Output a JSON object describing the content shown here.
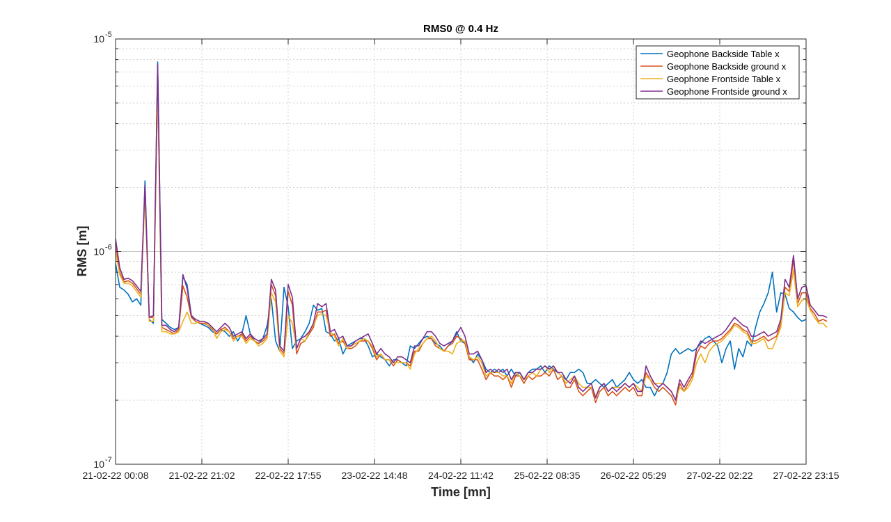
{
  "chart_data": {
    "type": "line",
    "title": "RMS0 @ 0.4 Hz",
    "xlabel": "Time [mn]",
    "ylabel": "RMS [m]",
    "y_scale": "log",
    "ylim": [
      1e-07,
      1e-05
    ],
    "y_ticks": [
      {
        "value": 1e-07,
        "base": "10",
        "exp": "-7"
      },
      {
        "value": 1e-06,
        "base": "10",
        "exp": "-6"
      },
      {
        "value": 1e-05,
        "base": "10",
        "exp": "-5"
      }
    ],
    "x_ticks": [
      "21-02-22 00:08",
      "21-02-22 21:02",
      "22-02-22 17:55",
      "23-02-22 14:48",
      "24-02-22 11:42",
      "25-02-22 08:35",
      "26-02-22 05:29",
      "27-02-22 02:22",
      "27-02-22 23:15"
    ],
    "grid": true,
    "minor_grid": true,
    "legend_position": "top-right",
    "series": [
      {
        "name": "Geophone Backside Table x",
        "color": "#0072BD",
        "values": [
          8.8e-07,
          6.8e-07,
          6.6e-07,
          6.3e-07,
          5.8e-07,
          6e-07,
          5.6e-07,
          2.15e-06,
          4.8e-07,
          4.6e-07,
          7.8e-06,
          4.8e-07,
          4.6e-07,
          4.4e-07,
          4.3e-07,
          4.4e-07,
          7.6e-07,
          7e-07,
          5e-07,
          4.7e-07,
          4.6e-07,
          4.5e-07,
          4.4e-07,
          4.2e-07,
          4.1e-07,
          4.3e-07,
          4.2e-07,
          4e-07,
          4.2e-07,
          3.8e-07,
          4.1e-07,
          5e-07,
          4.1e-07,
          3.8e-07,
          3.7e-07,
          3.9e-07,
          4.5e-07,
          6e-07,
          3.8e-07,
          3.4e-07,
          6.8e-07,
          5.5e-07,
          3.5e-07,
          3.8e-07,
          3.9e-07,
          4.2e-07,
          4.6e-07,
          5.6e-07,
          5.3e-07,
          5.4e-07,
          4.2e-07,
          4.1e-07,
          3.8e-07,
          3.9e-07,
          3.3e-07,
          3.6e-07,
          3.7e-07,
          3.8e-07,
          3.9e-07,
          3.9e-07,
          3.6e-07,
          3.2e-07,
          3.3e-07,
          3.2e-07,
          3.1e-07,
          2.9e-07,
          3.1e-07,
          3.1e-07,
          3e-07,
          2.9e-07,
          3.6e-07,
          3.5e-07,
          3.7e-07,
          3.9e-07,
          4e-07,
          3.9e-07,
          3.7e-07,
          3.6e-07,
          3.4e-07,
          3.6e-07,
          3.8e-07,
          4.2e-07,
          3.8e-07,
          3.7e-07,
          3.2e-07,
          3e-07,
          3.3e-07,
          3.1e-07,
          2.8e-07,
          2.7e-07,
          2.8e-07,
          2.7e-07,
          2.8e-07,
          2.6e-07,
          2.8e-07,
          2.6e-07,
          2.7e-07,
          2.5e-07,
          2.7e-07,
          2.8e-07,
          2.8e-07,
          2.9e-07,
          2.7e-07,
          2.9e-07,
          2.8e-07,
          2.7e-07,
          2.6e-07,
          2.5e-07,
          2.7e-07,
          2.7e-07,
          2.8e-07,
          2.7e-07,
          2.4e-07,
          2.4e-07,
          2.5e-07,
          2.4e-07,
          2.3e-07,
          2.4e-07,
          2.5e-07,
          2.3e-07,
          2.4e-07,
          2.5e-07,
          2.7e-07,
          2.5e-07,
          2.4e-07,
          2.5e-07,
          2.3e-07,
          2.3e-07,
          2.1e-07,
          2.3e-07,
          2.4e-07,
          2.7e-07,
          3.3e-07,
          3.5e-07,
          3.3e-07,
          3.4e-07,
          3.5e-07,
          3.4e-07,
          3.5e-07,
          3.7e-07,
          3.9e-07,
          4e-07,
          3.8e-07,
          3.6e-07,
          3e-07,
          3.5e-07,
          3.8e-07,
          2.8e-07,
          3.5e-07,
          3.2e-07,
          3.8e-07,
          3.6e-07,
          4.4e-07,
          5.2e-07,
          5.7e-07,
          6.4e-07,
          8e-07,
          5.2e-07,
          6.4e-07,
          6.3e-07,
          5.4e-07,
          5.2e-07,
          4.9e-07,
          4.7e-07,
          4.8e-07
        ]
      },
      {
        "name": "Geophone Backside ground x",
        "color": "#D95319",
        "values": [
          1.1e-06,
          8e-07,
          7.2e-07,
          7.3e-07,
          7.1e-07,
          6.7e-07,
          6.3e-07,
          1.9e-06,
          4.9e-07,
          4.9e-07,
          6.4e-06,
          4.4e-07,
          4.3e-07,
          4.2e-07,
          4.1e-07,
          4.3e-07,
          6.9e-07,
          6.1e-07,
          4.9e-07,
          4.7e-07,
          4.6e-07,
          4.6e-07,
          4.5e-07,
          4.3e-07,
          4.1e-07,
          4.3e-07,
          4.4e-07,
          4.2e-07,
          3.9e-07,
          4e-07,
          4.1e-07,
          3.8e-07,
          4e-07,
          3.8e-07,
          3.7e-07,
          3.8e-07,
          4e-07,
          7e-07,
          6.2e-07,
          3.5e-07,
          3.3e-07,
          6.5e-07,
          5.6e-07,
          3.3e-07,
          3.7e-07,
          3.8e-07,
          4.1e-07,
          4.4e-07,
          5.2e-07,
          5.2e-07,
          5.3e-07,
          4e-07,
          4.1e-07,
          3.7e-07,
          3.8e-07,
          3.5e-07,
          3.5e-07,
          3.6e-07,
          3.8e-07,
          3.8e-07,
          3.8e-07,
          3.5e-07,
          3.1e-07,
          3.3e-07,
          3.1e-07,
          3.1e-07,
          2.9e-07,
          3.1e-07,
          3e-07,
          3e-07,
          2.9e-07,
          3.4e-07,
          3.4e-07,
          3.7e-07,
          3.9e-07,
          3.9e-07,
          3.6e-07,
          3.5e-07,
          3.4e-07,
          3.6e-07,
          3.7e-07,
          4e-07,
          3.9e-07,
          3.7e-07,
          3.1e-07,
          3.1e-07,
          3.1e-07,
          2.8e-07,
          2.5e-07,
          2.7e-07,
          2.6e-07,
          2.6e-07,
          2.5e-07,
          2.6e-07,
          2.3e-07,
          2.6e-07,
          2.6e-07,
          2.4e-07,
          2.6e-07,
          2.5e-07,
          2.6e-07,
          2.6e-07,
          2.7e-07,
          2.6e-07,
          2.8e-07,
          2.5e-07,
          2.6e-07,
          2.3e-07,
          2.3e-07,
          2.5e-07,
          2.2e-07,
          2.1e-07,
          2.2e-07,
          2.3e-07,
          1.95e-07,
          2.2e-07,
          2.3e-07,
          2.1e-07,
          2.2e-07,
          2.1e-07,
          2.2e-07,
          2.3e-07,
          2.2e-07,
          2.3e-07,
          2.1e-07,
          2.1e-07,
          2.7e-07,
          2.5e-07,
          2.3e-07,
          2.2e-07,
          2.3e-07,
          2.2e-07,
          2.1e-07,
          1.9e-07,
          2.4e-07,
          2.2e-07,
          2.4e-07,
          2.6e-07,
          3.3e-07,
          3.6e-07,
          3.5e-07,
          3.7e-07,
          3.8e-07,
          3.8e-07,
          3.9e-07,
          4.1e-07,
          4.3e-07,
          4.6e-07,
          4.5e-07,
          4.3e-07,
          4.2e-07,
          3.8e-07,
          3.8e-07,
          3.9e-07,
          4e-07,
          3.8e-07,
          3.9e-07,
          4e-07,
          4.6e-07,
          6.8e-07,
          6.5e-07,
          9.2e-07,
          5.7e-07,
          6.4e-07,
          6.4e-07,
          5.4e-07,
          5.1e-07,
          4.7e-07,
          4.8e-07,
          4.7e-07
        ]
      },
      {
        "name": "Geophone Frontside Table x",
        "color": "#EDB120",
        "values": [
          1e-06,
          7.8e-07,
          7.1e-07,
          7.1e-07,
          6.9e-07,
          6.5e-07,
          6.1e-07,
          1.85e-06,
          4.7e-07,
          4.7e-07,
          6.2e-06,
          4.2e-07,
          4.2e-07,
          4.1e-07,
          4.1e-07,
          4.2e-07,
          4.7e-07,
          5.2e-07,
          4.6e-07,
          4.6e-07,
          4.7e-07,
          4.7e-07,
          4.5e-07,
          4.4e-07,
          3.9e-07,
          4.2e-07,
          4.3e-07,
          4.2e-07,
          3.8e-07,
          4e-07,
          4e-07,
          3.7e-07,
          3.9e-07,
          3.8e-07,
          3.6e-07,
          3.7e-07,
          3.9e-07,
          6.4e-07,
          5.8e-07,
          3.4e-07,
          3.2e-07,
          5e-07,
          4.6e-07,
          3.5e-07,
          3.9e-07,
          3.8e-07,
          4.2e-07,
          4.5e-07,
          5e-07,
          5.1e-07,
          5e-07,
          4.2e-07,
          4e-07,
          3.6e-07,
          3.9e-07,
          3.5e-07,
          3.6e-07,
          3.7e-07,
          3.8e-07,
          3.9e-07,
          3.8e-07,
          3.6e-07,
          3.2e-07,
          3.3e-07,
          3.1e-07,
          3.1e-07,
          3e-07,
          3e-07,
          3e-07,
          3e-07,
          2.8e-07,
          3.3e-07,
          3.5e-07,
          3.7e-07,
          3.9e-07,
          4e-07,
          3.8e-07,
          3.5e-07,
          3.4e-07,
          3.4e-07,
          3.3e-07,
          3.7e-07,
          3.8e-07,
          3.8e-07,
          3.2e-07,
          3.1e-07,
          3.2e-07,
          3e-07,
          2.6e-07,
          2.7e-07,
          2.7e-07,
          2.7e-07,
          2.6e-07,
          2.6e-07,
          2.4e-07,
          2.7e-07,
          2.6e-07,
          2.5e-07,
          2.6e-07,
          2.7e-07,
          2.6e-07,
          2.8e-07,
          2.9e-07,
          2.7e-07,
          2.9e-07,
          2.7e-07,
          2.6e-07,
          2.4e-07,
          2.5e-07,
          2.6e-07,
          2.4e-07,
          2.3e-07,
          2.3e-07,
          2.3e-07,
          2.1e-07,
          2.3e-07,
          2.4e-07,
          2.2e-07,
          2.3e-07,
          2.3e-07,
          2.3e-07,
          2.4e-07,
          2.3e-07,
          2.4e-07,
          2.3e-07,
          2.2e-07,
          2.6e-07,
          2.5e-07,
          2.4e-07,
          2.4e-07,
          2.4e-07,
          2.3e-07,
          2.2e-07,
          2e-07,
          2.3e-07,
          2.2e-07,
          2.3e-07,
          2.5e-07,
          3e-07,
          3.3e-07,
          3e-07,
          3.4e-07,
          3.6e-07,
          3.7e-07,
          3.8e-07,
          4e-07,
          4.2e-07,
          4.5e-07,
          4.4e-07,
          4.2e-07,
          4.1e-07,
          3.7e-07,
          3.7e-07,
          3.8e-07,
          3.9e-07,
          3.5e-07,
          3.5e-07,
          3.9e-07,
          4.4e-07,
          6.4e-07,
          6.2e-07,
          8.2e-07,
          5.5e-07,
          5.9e-07,
          6e-07,
          5.3e-07,
          4.9e-07,
          4.6e-07,
          4.6e-07,
          4.4e-07
        ]
      },
      {
        "name": "Geophone Frontside ground x",
        "color": "#7E2F8E",
        "values": [
          1.15e-06,
          8.4e-07,
          7.4e-07,
          7.5e-07,
          7.3e-07,
          6.9e-07,
          6.5e-07,
          2.05e-06,
          4.9e-07,
          5e-07,
          7.6e-06,
          4.5e-07,
          4.5e-07,
          4.3e-07,
          4.2e-07,
          4.4e-07,
          7.8e-07,
          6.7e-07,
          5e-07,
          4.8e-07,
          4.7e-07,
          4.7e-07,
          4.6e-07,
          4.4e-07,
          4.2e-07,
          4.4e-07,
          4.6e-07,
          4.4e-07,
          4e-07,
          4.1e-07,
          4.2e-07,
          3.9e-07,
          4.1e-07,
          3.9e-07,
          3.8e-07,
          3.9e-07,
          4.1e-07,
          7.4e-07,
          6.6e-07,
          3.6e-07,
          3.4e-07,
          7e-07,
          6.1e-07,
          3.5e-07,
          3.9e-07,
          4e-07,
          4.2e-07,
          4.6e-07,
          5.7e-07,
          5.5e-07,
          5.7e-07,
          4.2e-07,
          4.3e-07,
          3.9e-07,
          4e-07,
          3.6e-07,
          3.6e-07,
          3.8e-07,
          3.9e-07,
          4e-07,
          4.1e-07,
          3.7e-07,
          3.3e-07,
          3.5e-07,
          3.3e-07,
          3.2e-07,
          3e-07,
          3.2e-07,
          3.2e-07,
          3.1e-07,
          3e-07,
          3.6e-07,
          3.6e-07,
          3.9e-07,
          4.2e-07,
          4.2e-07,
          4e-07,
          3.7e-07,
          3.6e-07,
          3.7e-07,
          3.8e-07,
          4.1e-07,
          4.4e-07,
          4e-07,
          3.3e-07,
          3.3e-07,
          3.4e-07,
          3.1e-07,
          2.7e-07,
          2.8e-07,
          2.7e-07,
          2.8e-07,
          2.7e-07,
          2.8e-07,
          2.5e-07,
          2.7e-07,
          2.7e-07,
          2.5e-07,
          2.7e-07,
          2.7e-07,
          2.8e-07,
          2.8e-07,
          2.9e-07,
          2.8e-07,
          2.9e-07,
          2.7e-07,
          2.7e-07,
          2.5e-07,
          2.4e-07,
          2.6e-07,
          2.3e-07,
          2.2e-07,
          2.3e-07,
          2.4e-07,
          2.05e-07,
          2.3e-07,
          2.4e-07,
          2.2e-07,
          2.3e-07,
          2.2e-07,
          2.3e-07,
          2.4e-07,
          2.3e-07,
          2.4e-07,
          2.2e-07,
          2.2e-07,
          2.9e-07,
          2.6e-07,
          2.4e-07,
          2.3e-07,
          2.4e-07,
          2.3e-07,
          2.2e-07,
          2e-07,
          2.5e-07,
          2.3e-07,
          2.5e-07,
          2.7e-07,
          3.5e-07,
          3.8e-07,
          3.7e-07,
          3.8e-07,
          3.9e-07,
          4e-07,
          4.1e-07,
          4.3e-07,
          4.6e-07,
          4.9e-07,
          4.7e-07,
          4.5e-07,
          4.4e-07,
          4e-07,
          4e-07,
          4.1e-07,
          4.2e-07,
          4e-07,
          4.1e-07,
          4.2e-07,
          4.8e-07,
          7.4e-07,
          6.8e-07,
          9.6e-07,
          6e-07,
          6.8e-07,
          6.9e-07,
          5.6e-07,
          5.3e-07,
          5e-07,
          5e-07,
          4.9e-07
        ]
      }
    ]
  }
}
